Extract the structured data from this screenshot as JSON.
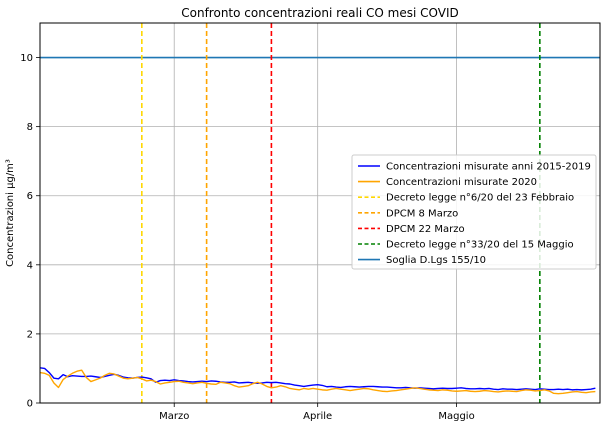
{
  "chart_data": {
    "type": "line",
    "title": "Confronto concentrazioni reali CO mesi COVID",
    "xlabel": "",
    "ylabel": "Concentrazioni µg/m³",
    "x_start": "2020-02-01",
    "x_end": "2020-05-31",
    "xlim": [
      "2020-02-01",
      "2020-06-01"
    ],
    "ylim": [
      0,
      11
    ],
    "grid": true,
    "legend_position": "center-right",
    "x_ticks": [
      {
        "date": "2020-03-01",
        "label": "Marzo"
      },
      {
        "date": "2020-04-01",
        "label": "Aprile"
      },
      {
        "date": "2020-05-01",
        "label": "Maggio"
      }
    ],
    "y_ticks": [
      0,
      2,
      4,
      6,
      8,
      10
    ],
    "series": [
      {
        "name": "Concentrazioni misurate anni 2015-2019",
        "color": "#0000ff",
        "style": "solid",
        "values": [
          1.02,
          1.0,
          0.88,
          0.72,
          0.7,
          0.82,
          0.76,
          0.79,
          0.78,
          0.77,
          0.77,
          0.78,
          0.76,
          0.74,
          0.77,
          0.8,
          0.83,
          0.8,
          0.75,
          0.73,
          0.72,
          0.74,
          0.75,
          0.73,
          0.7,
          0.6,
          0.65,
          0.66,
          0.65,
          0.67,
          0.65,
          0.64,
          0.62,
          0.61,
          0.62,
          0.63,
          0.62,
          0.64,
          0.63,
          0.61,
          0.6,
          0.6,
          0.61,
          0.58,
          0.59,
          0.6,
          0.58,
          0.57,
          0.58,
          0.6,
          0.59,
          0.6,
          0.58,
          0.56,
          0.55,
          0.52,
          0.5,
          0.48,
          0.5,
          0.52,
          0.53,
          0.51,
          0.47,
          0.48,
          0.46,
          0.45,
          0.47,
          0.48,
          0.47,
          0.46,
          0.47,
          0.48,
          0.48,
          0.47,
          0.46,
          0.46,
          0.45,
          0.44,
          0.44,
          0.45,
          0.44,
          0.43,
          0.44,
          0.43,
          0.42,
          0.41,
          0.42,
          0.43,
          0.42,
          0.42,
          0.43,
          0.44,
          0.42,
          0.41,
          0.41,
          0.42,
          0.41,
          0.42,
          0.4,
          0.39,
          0.41,
          0.4,
          0.4,
          0.39,
          0.4,
          0.41,
          0.4,
          0.39,
          0.41,
          0.4,
          0.39,
          0.39,
          0.4,
          0.39,
          0.4,
          0.38,
          0.39,
          0.38,
          0.39,
          0.4,
          0.43
        ]
      },
      {
        "name": "Concentrazioni misurate 2020",
        "color": "#ffa500",
        "style": "solid",
        "values": [
          0.88,
          0.86,
          0.8,
          0.58,
          0.45,
          0.68,
          0.78,
          0.86,
          0.92,
          0.95,
          0.74,
          0.62,
          0.67,
          0.72,
          0.8,
          0.86,
          0.84,
          0.78,
          0.72,
          0.7,
          0.72,
          0.74,
          0.7,
          0.64,
          0.66,
          0.62,
          0.55,
          0.58,
          0.6,
          0.62,
          0.63,
          0.6,
          0.58,
          0.56,
          0.58,
          0.6,
          0.57,
          0.55,
          0.54,
          0.6,
          0.58,
          0.56,
          0.5,
          0.46,
          0.48,
          0.5,
          0.56,
          0.6,
          0.55,
          0.48,
          0.44,
          0.46,
          0.5,
          0.47,
          0.42,
          0.4,
          0.38,
          0.42,
          0.4,
          0.42,
          0.4,
          0.38,
          0.37,
          0.4,
          0.42,
          0.4,
          0.38,
          0.36,
          0.38,
          0.4,
          0.42,
          0.41,
          0.38,
          0.36,
          0.34,
          0.33,
          0.35,
          0.36,
          0.38,
          0.4,
          0.42,
          0.44,
          0.42,
          0.4,
          0.38,
          0.37,
          0.36,
          0.38,
          0.37,
          0.35,
          0.34,
          0.35,
          0.36,
          0.34,
          0.33,
          0.34,
          0.36,
          0.35,
          0.33,
          0.32,
          0.34,
          0.35,
          0.34,
          0.33,
          0.36,
          0.38,
          0.37,
          0.35,
          0.36,
          0.38,
          0.35,
          0.28,
          0.27,
          0.28,
          0.3,
          0.32,
          0.33,
          0.31,
          0.3,
          0.32,
          0.33
        ]
      }
    ],
    "vlines": [
      {
        "name": "Decreto legge n°6/20 del 23 Febbraio",
        "date": "2020-02-23",
        "color": "#ffd700",
        "style": "dashed"
      },
      {
        "name": "DPCM 8 Marzo",
        "date": "2020-03-08",
        "color": "#ffa500",
        "style": "dashed"
      },
      {
        "name": "DPCM 22 Marzo",
        "date": "2020-03-22",
        "color": "#ff0000",
        "style": "dashed"
      },
      {
        "name": "Decreto legge n°33/20 del 15 Maggio",
        "date": "2020-05-19",
        "color": "#008000",
        "style": "dashed"
      }
    ],
    "hlines": [
      {
        "name": "Soglia D.Lgs 155/10",
        "y": 10,
        "color": "#1f77b4",
        "style": "solid"
      }
    ],
    "legend": [
      {
        "label": "Concentrazioni misurate anni 2015-2019",
        "color": "#0000ff",
        "style": "solid"
      },
      {
        "label": "Concentrazioni misurate 2020",
        "color": "#ffa500",
        "style": "solid"
      },
      {
        "label": "Decreto legge n°6/20 del 23 Febbraio",
        "color": "#ffd700",
        "style": "dashed"
      },
      {
        "label": "DPCM 8 Marzo",
        "color": "#ffa500",
        "style": "dashed"
      },
      {
        "label": "DPCM 22 Marzo",
        "color": "#ff0000",
        "style": "dashed"
      },
      {
        "label": "Decreto legge n°33/20 del 15 Maggio",
        "color": "#008000",
        "style": "dashed"
      },
      {
        "label": "Soglia D.Lgs 155/10",
        "color": "#1f77b4",
        "style": "solid"
      }
    ]
  }
}
